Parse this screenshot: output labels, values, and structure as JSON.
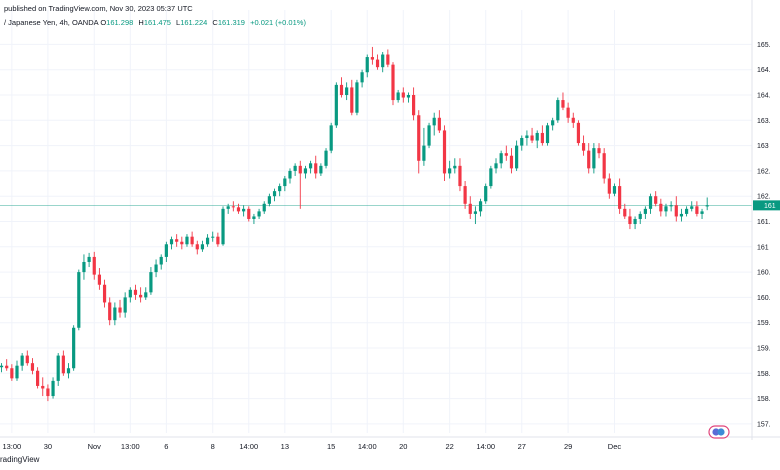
{
  "header": {
    "published": "published on TradingView.com, Nov 30, 2023 05:37 UTC",
    "symbol": "/ Japanese Yen, 4h, OANDA",
    "open_label": "O",
    "open": "161.298",
    "high_label": "H",
    "high": "161.475",
    "low_label": "L",
    "low": "161.224",
    "close_label": "C",
    "close": "161.319",
    "change": "+0.021 (+0.01%)"
  },
  "footer": {
    "brand": "radingView"
  },
  "colors": {
    "up": "#089981",
    "down": "#f23645",
    "grid": "#f0f3fa",
    "axis_text": "#131722",
    "price_line": "#089981"
  },
  "chart_data": {
    "type": "candlestick",
    "title": "",
    "xlabel": "",
    "ylabel": "",
    "ylim": [
      156.82,
      165.18
    ],
    "grid": true,
    "y_ticks": [
      {
        "value": 157.0,
        "label": "157."
      },
      {
        "value": 157.5,
        "label": "158."
      },
      {
        "value": 158.0,
        "label": "158."
      },
      {
        "value": 158.5,
        "label": "159."
      },
      {
        "value": 159.0,
        "label": "159."
      },
      {
        "value": 159.5,
        "label": "160."
      },
      {
        "value": 160.0,
        "label": "160."
      },
      {
        "value": 160.5,
        "label": "161"
      },
      {
        "value": 161.0,
        "label": "161."
      },
      {
        "value": 161.5,
        "label": "162."
      },
      {
        "value": 162.0,
        "label": "162."
      },
      {
        "value": 162.5,
        "label": "163"
      },
      {
        "value": 163.0,
        "label": "163."
      },
      {
        "value": 163.5,
        "label": "164."
      },
      {
        "value": 164.0,
        "label": "164."
      },
      {
        "value": 164.5,
        "label": "165."
      }
    ],
    "x_ticks": [
      {
        "index": 4,
        "label": "13:00"
      },
      {
        "index": 11,
        "label": "30"
      },
      {
        "index": 20,
        "label": "Nov"
      },
      {
        "index": 27,
        "label": "13:00"
      },
      {
        "index": 34,
        "label": "6"
      },
      {
        "index": 43,
        "label": "8"
      },
      {
        "index": 50,
        "label": "14:00"
      },
      {
        "index": 57,
        "label": "13"
      },
      {
        "index": 66,
        "label": "15"
      },
      {
        "index": 73,
        "label": "14:00"
      },
      {
        "index": 80,
        "label": "20"
      },
      {
        "index": 89,
        "label": "22"
      },
      {
        "index": 96,
        "label": "14:00"
      },
      {
        "index": 103,
        "label": "27"
      },
      {
        "index": 112,
        "label": "29"
      },
      {
        "index": 121,
        "label": "Dec"
      }
    ],
    "current_price": {
      "value": 161.319,
      "label": "161"
    },
    "candles": [
      [
        158.1,
        158.3,
        157.98,
        158.2
      ],
      [
        158.2,
        158.3,
        158.08,
        158.12
      ],
      [
        158.12,
        158.2,
        158.02,
        158.15
      ],
      [
        158.15,
        158.28,
        158.05,
        158.1
      ],
      [
        158.1,
        158.18,
        157.85,
        157.9
      ],
      [
        157.9,
        158.25,
        157.85,
        158.15
      ],
      [
        158.15,
        158.4,
        158.05,
        158.35
      ],
      [
        158.35,
        158.45,
        158.15,
        158.2
      ],
      [
        158.2,
        158.3,
        157.98,
        158.05
      ],
      [
        158.05,
        158.12,
        157.7,
        157.75
      ],
      [
        157.75,
        157.92,
        157.55,
        157.7
      ],
      [
        157.7,
        157.78,
        157.45,
        157.55
      ],
      [
        157.55,
        157.92,
        157.5,
        157.85
      ],
      [
        157.85,
        158.4,
        157.75,
        158.35
      ],
      [
        158.35,
        158.45,
        157.95,
        158.0
      ],
      [
        158.0,
        158.2,
        157.9,
        158.1
      ],
      [
        158.1,
        158.95,
        158.05,
        158.9
      ],
      [
        158.9,
        160.05,
        158.85,
        160.0
      ],
      [
        160.0,
        160.35,
        159.85,
        160.2
      ],
      [
        160.2,
        160.38,
        160.1,
        160.3
      ],
      [
        160.3,
        160.4,
        159.85,
        159.95
      ],
      [
        159.95,
        160.08,
        159.65,
        159.75
      ],
      [
        159.75,
        159.85,
        159.3,
        159.4
      ],
      [
        159.4,
        159.5,
        158.95,
        159.05
      ],
      [
        159.05,
        159.4,
        158.95,
        159.3
      ],
      [
        159.3,
        159.45,
        159.1,
        159.2
      ],
      [
        159.2,
        159.6,
        159.1,
        159.5
      ],
      [
        159.5,
        159.7,
        159.4,
        159.65
      ],
      [
        159.65,
        159.75,
        159.45,
        159.55
      ],
      [
        159.55,
        159.7,
        159.4,
        159.5
      ],
      [
        159.5,
        159.7,
        159.45,
        159.6
      ],
      [
        159.6,
        160.1,
        159.55,
        160.0
      ],
      [
        160.0,
        160.25,
        159.9,
        160.15
      ],
      [
        160.15,
        160.35,
        160.05,
        160.3
      ],
      [
        160.3,
        160.6,
        160.2,
        160.55
      ],
      [
        160.55,
        160.7,
        160.45,
        160.65
      ],
      [
        160.65,
        160.75,
        160.5,
        160.6
      ],
      [
        160.6,
        160.7,
        160.45,
        160.55
      ],
      [
        160.55,
        160.75,
        160.5,
        160.7
      ],
      [
        160.7,
        160.8,
        160.5,
        160.55
      ],
      [
        160.55,
        160.62,
        160.35,
        160.45
      ],
      [
        160.45,
        160.62,
        160.4,
        160.55
      ],
      [
        160.55,
        160.75,
        160.5,
        160.68
      ],
      [
        160.68,
        160.8,
        160.6,
        160.7
      ],
      [
        160.7,
        160.78,
        160.5,
        160.55
      ],
      [
        160.55,
        161.3,
        160.52,
        161.25
      ],
      [
        161.25,
        161.35,
        161.15,
        161.3
      ],
      [
        161.3,
        161.4,
        161.2,
        161.28
      ],
      [
        161.28,
        161.35,
        161.15,
        161.2
      ],
      [
        161.2,
        161.32,
        161.1,
        161.25
      ],
      [
        161.25,
        161.3,
        161.0,
        161.05
      ],
      [
        161.05,
        161.15,
        160.95,
        161.1
      ],
      [
        161.1,
        161.25,
        161.05,
        161.2
      ],
      [
        161.2,
        161.4,
        161.15,
        161.35
      ],
      [
        161.35,
        161.55,
        161.3,
        161.5
      ],
      [
        161.5,
        161.65,
        161.4,
        161.6
      ],
      [
        161.6,
        161.75,
        161.5,
        161.7
      ],
      [
        161.7,
        161.9,
        161.6,
        161.85
      ],
      [
        161.85,
        162.05,
        161.75,
        162.0
      ],
      [
        162.0,
        162.15,
        161.9,
        162.1
      ],
      [
        162.1,
        162.2,
        161.25,
        161.95
      ],
      [
        161.95,
        162.1,
        161.85,
        162.05
      ],
      [
        162.05,
        162.2,
        161.95,
        162.15
      ],
      [
        162.15,
        162.3,
        161.85,
        161.95
      ],
      [
        161.95,
        162.15,
        161.9,
        162.1
      ],
      [
        162.1,
        162.45,
        162.05,
        162.4
      ],
      [
        162.4,
        162.95,
        162.35,
        162.9
      ],
      [
        162.9,
        163.75,
        162.85,
        163.7
      ],
      [
        163.7,
        163.85,
        163.45,
        163.5
      ],
      [
        163.5,
        163.75,
        163.4,
        163.65
      ],
      [
        163.65,
        163.8,
        163.1,
        163.15
      ],
      [
        163.15,
        163.8,
        163.1,
        163.75
      ],
      [
        163.75,
        164.0,
        163.65,
        163.95
      ],
      [
        163.95,
        164.3,
        163.85,
        164.25
      ],
      [
        164.25,
        164.45,
        164.1,
        164.2
      ],
      [
        164.2,
        164.3,
        164.0,
        164.05
      ],
      [
        164.05,
        164.35,
        163.95,
        164.3
      ],
      [
        164.3,
        164.4,
        164.05,
        164.1
      ],
      [
        164.1,
        164.15,
        163.3,
        163.4
      ],
      [
        163.4,
        163.6,
        163.35,
        163.55
      ],
      [
        163.55,
        163.65,
        163.35,
        163.45
      ],
      [
        163.45,
        163.55,
        163.35,
        163.5
      ],
      [
        163.5,
        163.65,
        163.0,
        163.1
      ],
      [
        163.1,
        163.2,
        161.95,
        162.2
      ],
      [
        162.2,
        162.85,
        162.1,
        162.5
      ],
      [
        162.5,
        162.95,
        162.45,
        162.9
      ],
      [
        162.9,
        163.15,
        162.7,
        163.05
      ],
      [
        163.05,
        163.2,
        162.75,
        162.8
      ],
      [
        162.8,
        162.9,
        161.8,
        161.95
      ],
      [
        161.95,
        162.2,
        161.85,
        162.05
      ],
      [
        162.05,
        162.25,
        161.95,
        162.1
      ],
      [
        162.1,
        162.25,
        161.6,
        161.7
      ],
      [
        161.7,
        161.8,
        161.25,
        161.35
      ],
      [
        161.35,
        161.5,
        161.05,
        161.15
      ],
      [
        161.15,
        161.3,
        160.95,
        161.2
      ],
      [
        161.2,
        161.45,
        161.1,
        161.4
      ],
      [
        161.4,
        161.75,
        161.35,
        161.7
      ],
      [
        161.7,
        162.1,
        161.65,
        162.05
      ],
      [
        162.05,
        162.25,
        161.95,
        162.15
      ],
      [
        162.15,
        162.4,
        162.05,
        162.35
      ],
      [
        162.35,
        162.5,
        162.2,
        162.3
      ],
      [
        162.3,
        162.45,
        161.95,
        162.05
      ],
      [
        162.05,
        162.6,
        162.0,
        162.5
      ],
      [
        162.5,
        162.7,
        162.4,
        162.65
      ],
      [
        162.65,
        162.8,
        162.5,
        162.7
      ],
      [
        162.7,
        162.85,
        162.55,
        162.6
      ],
      [
        162.6,
        162.8,
        162.45,
        162.75
      ],
      [
        162.75,
        162.9,
        162.5,
        162.55
      ],
      [
        162.55,
        162.95,
        162.5,
        162.9
      ],
      [
        162.9,
        163.05,
        162.8,
        163.0
      ],
      [
        163.0,
        163.45,
        162.95,
        163.4
      ],
      [
        163.4,
        163.55,
        163.2,
        163.25
      ],
      [
        163.25,
        163.35,
        162.95,
        163.05
      ],
      [
        163.05,
        163.15,
        162.85,
        162.95
      ],
      [
        162.95,
        163.0,
        162.5,
        162.55
      ],
      [
        162.55,
        162.7,
        162.3,
        162.4
      ],
      [
        162.4,
        162.55,
        161.95,
        162.05
      ],
      [
        162.05,
        162.55,
        161.95,
        162.45
      ],
      [
        162.45,
        162.55,
        162.25,
        162.35
      ],
      [
        162.35,
        162.45,
        161.75,
        161.85
      ],
      [
        161.85,
        161.95,
        161.45,
        161.55
      ],
      [
        161.55,
        161.75,
        161.5,
        161.7
      ],
      [
        161.7,
        161.85,
        161.15,
        161.25
      ],
      [
        161.25,
        161.35,
        161.05,
        161.1
      ],
      [
        161.1,
        161.25,
        160.85,
        160.95
      ],
      [
        160.95,
        161.1,
        160.85,
        161.05
      ],
      [
        161.05,
        161.2,
        160.95,
        161.15
      ],
      [
        161.15,
        161.3,
        161.05,
        161.25
      ],
      [
        161.25,
        161.55,
        161.15,
        161.5
      ],
      [
        161.5,
        161.6,
        161.3,
        161.35
      ],
      [
        161.35,
        161.45,
        161.1,
        161.2
      ],
      [
        161.2,
        161.35,
        161.1,
        161.3
      ],
      [
        161.3,
        161.4,
        161.2,
        161.32
      ],
      [
        161.32,
        161.5,
        161.0,
        161.1
      ],
      [
        161.1,
        161.25,
        161.0,
        161.15
      ],
      [
        161.15,
        161.3,
        161.1,
        161.25
      ],
      [
        161.25,
        161.4,
        161.2,
        161.3
      ],
      [
        161.3,
        161.4,
        161.1,
        161.15
      ],
      [
        161.15,
        161.25,
        161.05,
        161.2
      ],
      [
        161.298,
        161.475,
        161.224,
        161.319
      ]
    ]
  }
}
